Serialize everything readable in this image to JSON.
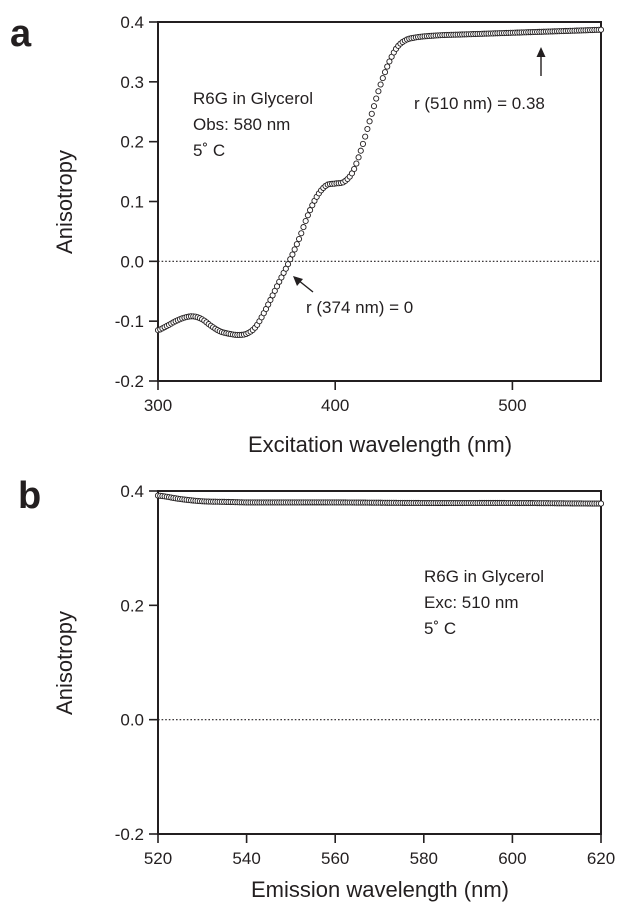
{
  "chart_data": [
    {
      "panel": "a",
      "type": "scatter",
      "xlabel": "Excitation wavelength (nm)",
      "ylabel": "Anisotropy",
      "xlim": [
        300,
        550
      ],
      "ylim": [
        -0.2,
        0.4
      ],
      "xticks": [
        300,
        400,
        500
      ],
      "yticks": [
        -0.2,
        -0.1,
        0.0,
        0.1,
        0.2,
        0.3,
        0.4
      ],
      "ytick_labels": [
        "-0.2",
        "-0.1",
        "0.0",
        "0.1",
        "0.2",
        "0.3",
        "0.4"
      ],
      "zero_line": 0.0,
      "grid": false,
      "series": [
        {
          "marker": "open-circle",
          "x": [
            300,
            305,
            310,
            315,
            320,
            325,
            330,
            335,
            340,
            345,
            350,
            355,
            360,
            365,
            370,
            374,
            380,
            385,
            390,
            395,
            400,
            405,
            410,
            415,
            420,
            425,
            430,
            435,
            440,
            445,
            450,
            460,
            470,
            480,
            490,
            500,
            510,
            520,
            530,
            540,
            550
          ],
          "y": [
            -0.115,
            -0.108,
            -0.1,
            -0.094,
            -0.092,
            -0.097,
            -0.108,
            -0.117,
            -0.121,
            -0.123,
            -0.121,
            -0.11,
            -0.085,
            -0.055,
            -0.025,
            0.0,
            0.04,
            0.08,
            0.11,
            0.127,
            0.13,
            0.133,
            0.15,
            0.19,
            0.24,
            0.29,
            0.33,
            0.358,
            0.37,
            0.374,
            0.376,
            0.378,
            0.379,
            0.38,
            0.381,
            0.382,
            0.383,
            0.384,
            0.385,
            0.386,
            0.387
          ]
        }
      ],
      "annotations": {
        "sample_lines": [
          "R6G in Glycerol",
          "Obs: 580 nm",
          "5˚ C"
        ],
        "r_high": "r (510 nm) = 0.38",
        "r_zero": "r (374 nm) = 0"
      }
    },
    {
      "panel": "b",
      "type": "scatter",
      "xlabel": "Emission wavelength (nm)",
      "ylabel": "Anisotropy",
      "xlim": [
        520,
        620
      ],
      "ylim": [
        -0.2,
        0.4
      ],
      "xticks": [
        520,
        540,
        560,
        580,
        600,
        620
      ],
      "yticks": [
        -0.2,
        0.0,
        0.2,
        0.4
      ],
      "ytick_labels": [
        "-0.2",
        "0.0",
        "0.2",
        "0.4"
      ],
      "zero_line": 0.0,
      "grid": false,
      "series": [
        {
          "marker": "open-circle",
          "x": [
            520,
            525,
            530,
            535,
            540,
            560,
            580,
            600,
            620
          ],
          "y": [
            0.392,
            0.386,
            0.382,
            0.381,
            0.38,
            0.38,
            0.379,
            0.379,
            0.378
          ]
        }
      ],
      "annotations": {
        "sample_lines": [
          "R6G in Glycerol",
          "Exc: 510 nm",
          "5˚ C"
        ]
      }
    }
  ],
  "figure": {
    "ink": "#231f20",
    "background": "#ffffff"
  }
}
